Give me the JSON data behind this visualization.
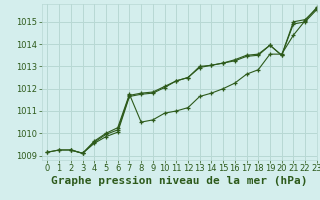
{
  "title": "Graphe pression niveau de la mer (hPa)",
  "background_color": "#d4eeed",
  "grid_color": "#b8d8d4",
  "line_color": "#2d5a1b",
  "xlim": [
    -0.5,
    23
  ],
  "ylim": [
    1008.8,
    1015.8
  ],
  "yticks": [
    1009,
    1010,
    1011,
    1012,
    1013,
    1014,
    1015
  ],
  "xticks": [
    0,
    1,
    2,
    3,
    4,
    5,
    6,
    7,
    8,
    9,
    10,
    11,
    12,
    13,
    14,
    15,
    16,
    17,
    18,
    19,
    20,
    21,
    22,
    23
  ],
  "series1_x": [
    0,
    1,
    2,
    3,
    4,
    5,
    6,
    7,
    8,
    9,
    10,
    11,
    12,
    13,
    14,
    15,
    16,
    17,
    18,
    19,
    20,
    21,
    22,
    23
  ],
  "series1_y": [
    1009.15,
    1009.25,
    1009.25,
    1009.1,
    1009.55,
    1009.85,
    1010.05,
    1011.65,
    1011.75,
    1011.8,
    1012.05,
    1012.35,
    1012.5,
    1012.95,
    1013.05,
    1013.15,
    1013.25,
    1013.45,
    1013.5,
    1013.95,
    1013.5,
    1014.9,
    1015.0,
    1015.55
  ],
  "series2_x": [
    0,
    1,
    2,
    3,
    4,
    5,
    6,
    7,
    8,
    9,
    10,
    11,
    12,
    13,
    14,
    15,
    16,
    17,
    18,
    19,
    20,
    21,
    22,
    23
  ],
  "series2_y": [
    1009.15,
    1009.25,
    1009.25,
    1009.1,
    1009.6,
    1009.95,
    1010.15,
    1011.7,
    1011.8,
    1011.85,
    1012.1,
    1012.35,
    1012.5,
    1013.0,
    1013.05,
    1013.15,
    1013.3,
    1013.5,
    1013.55,
    1013.95,
    1013.5,
    1015.0,
    1015.1,
    1015.6
  ],
  "series3_x": [
    2,
    3,
    4,
    5,
    6,
    7,
    8,
    9,
    10,
    11,
    12,
    13,
    14,
    15,
    16,
    17,
    18,
    19,
    20,
    21,
    22,
    23
  ],
  "series3_y": [
    1009.25,
    1009.1,
    1009.65,
    1010.0,
    1010.25,
    1011.75,
    1010.5,
    1010.6,
    1010.9,
    1011.0,
    1011.15,
    1011.65,
    1011.8,
    1012.0,
    1012.25,
    1012.65,
    1012.85,
    1013.55,
    1013.55,
    1014.4,
    1015.05,
    1015.65
  ],
  "title_fontsize": 8.0,
  "tick_fontsize": 6.0
}
